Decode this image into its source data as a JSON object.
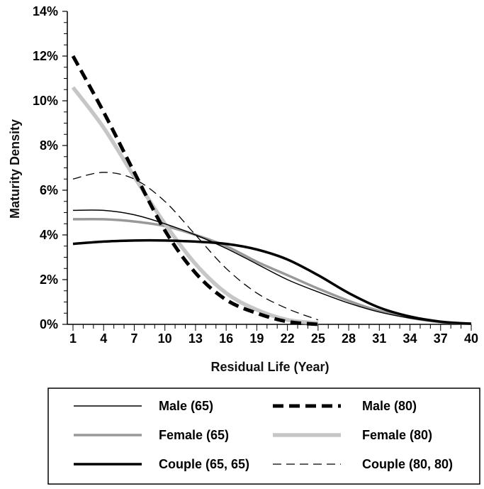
{
  "chart_data": {
    "type": "line",
    "title": "",
    "xlabel": "Residual Life (Year)",
    "ylabel": "Maturity Density",
    "xlim": [
      1,
      40
    ],
    "ylim": [
      0,
      14
    ],
    "x_ticks": [
      1,
      4,
      7,
      10,
      13,
      16,
      19,
      22,
      25,
      28,
      31,
      34,
      37,
      40
    ],
    "y_ticks": [
      "0%",
      "2%",
      "4%",
      "6%",
      "8%",
      "10%",
      "12%",
      "14%"
    ],
    "y_tick_values": [
      0,
      2,
      4,
      6,
      8,
      10,
      12,
      14
    ],
    "grid": false,
    "legend_placement": "bottom",
    "series": [
      {
        "name": "Male (65)",
        "color": "#000000",
        "style": "thin-solid",
        "x": [
          1,
          4,
          7,
          10,
          13,
          16,
          19,
          22,
          25,
          28,
          31,
          34,
          37,
          40
        ],
        "y": [
          5.1,
          5.1,
          4.9,
          4.5,
          4.0,
          3.4,
          2.7,
          2.0,
          1.45,
          0.95,
          0.55,
          0.28,
          0.1,
          0.03
        ]
      },
      {
        "name": "Male (80)",
        "color": "#000000",
        "style": "thick-dashed",
        "x": [
          1,
          4,
          7,
          10,
          13,
          16,
          19,
          22,
          25
        ],
        "y": [
          12.0,
          9.5,
          6.8,
          4.2,
          2.3,
          1.1,
          0.5,
          0.12,
          0.0
        ]
      },
      {
        "name": "Female (65)",
        "color": "#999999",
        "style": "medium-solid",
        "x": [
          1,
          4,
          7,
          10,
          13,
          16,
          19,
          22,
          25,
          28,
          31,
          34,
          37,
          40
        ],
        "y": [
          4.7,
          4.7,
          4.6,
          4.4,
          4.0,
          3.5,
          2.8,
          2.2,
          1.6,
          1.05,
          0.6,
          0.3,
          0.1,
          0.03
        ]
      },
      {
        "name": "Female (80)",
        "color": "#c6c6c6",
        "style": "thick-solid",
        "x": [
          1,
          4,
          7,
          10,
          13,
          16,
          19,
          22,
          25
        ],
        "y": [
          10.6,
          8.8,
          6.6,
          4.5,
          2.7,
          1.4,
          0.65,
          0.2,
          0.05
        ]
      },
      {
        "name": "Couple (65, 65)",
        "color": "#000000",
        "style": "bold-solid",
        "x": [
          1,
          4,
          7,
          10,
          13,
          16,
          19,
          22,
          25,
          28,
          31,
          34,
          37,
          40
        ],
        "y": [
          3.6,
          3.7,
          3.75,
          3.75,
          3.7,
          3.6,
          3.35,
          2.9,
          2.2,
          1.4,
          0.75,
          0.35,
          0.12,
          0.03
        ]
      },
      {
        "name": "Couple (80, 80)",
        "color": "#000000",
        "style": "thin-dashed",
        "x": [
          1,
          4,
          7,
          10,
          13,
          16,
          19,
          22,
          25
        ],
        "y": [
          6.5,
          6.8,
          6.5,
          5.5,
          4.0,
          2.5,
          1.4,
          0.7,
          0.2
        ]
      }
    ]
  }
}
